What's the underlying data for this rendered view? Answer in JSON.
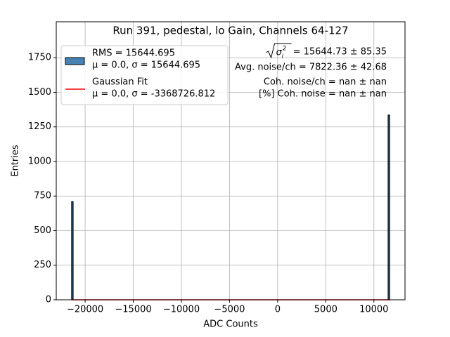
{
  "chart_data": {
    "type": "histogram",
    "title": "Run 391, pedestal, lo Gain, Channels 64-127",
    "x_label": "ADC Counts",
    "y_label": "Entries",
    "bins": [
      -21400,
      -21250,
      11480,
      11630
    ],
    "counts": [
      710,
      0,
      1335
    ],
    "color": "#4682b4",
    "edgecolor": "#000000",
    "hist_label": [
      "RMS = 15644.695",
      "μ = 0.0, σ = 15644.695"
    ],
    "fit": {
      "x": [
        -21300,
        11600
      ],
      "y": [
        0,
        0
      ],
      "color": "#ff0000",
      "label": [
        "Gaussian Fit",
        "μ = 0.0, σ = -3368726.812"
      ]
    },
    "xlim": [
      -23000,
      13230
    ],
    "ylim": [
      0,
      2010
    ],
    "xticks": [
      {
        "value": -20000,
        "label": "−20000"
      },
      {
        "value": -15000,
        "label": "−15000"
      },
      {
        "value": -10000,
        "label": "−10000"
      },
      {
        "value": -5000,
        "label": "−5000"
      },
      0,
      5000,
      10000
    ],
    "yticks": [
      0,
      250,
      500,
      750,
      1000,
      1250,
      1500,
      1750
    ],
    "grid": true,
    "legend_loc": "upper left",
    "annotations": [
      {
        "symbol": "σ",
        "subscript": "i",
        "superscript": "2",
        "text": "= 15644.73 ± 85.35"
      },
      {
        "text": "Avg. noise/ch = 7822.36 ± 42.68"
      },
      {
        "text": "Coh. noise/ch = nan ± nan"
      },
      {
        "text": "[%] Coh. noise = nan ± nan"
      }
    ]
  }
}
